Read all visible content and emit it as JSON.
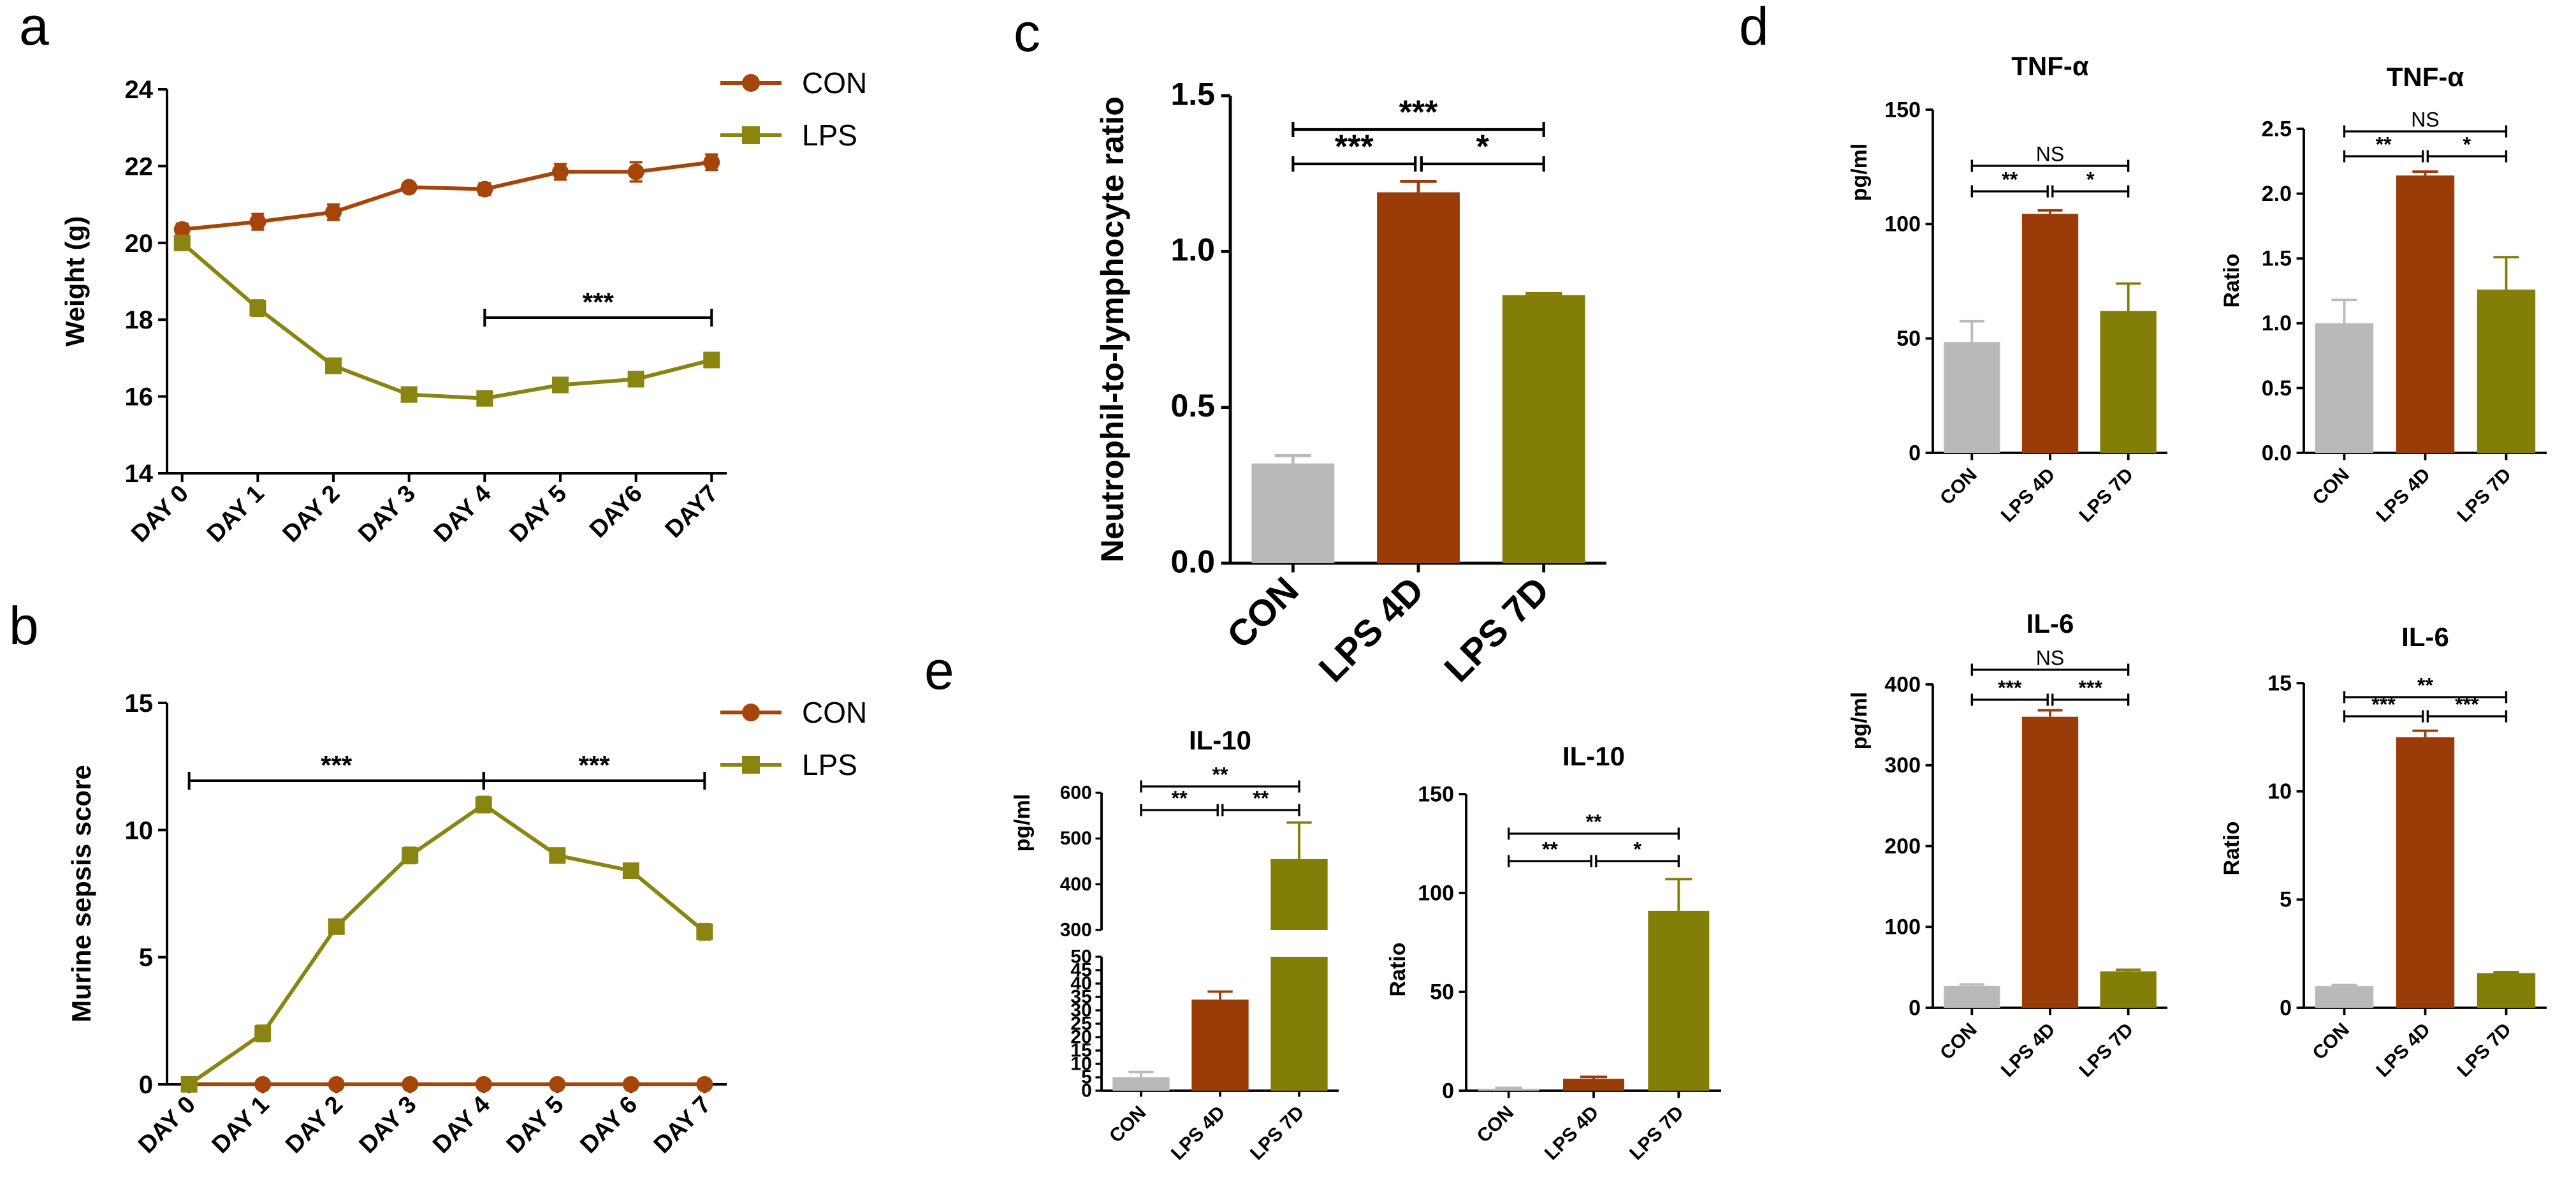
{
  "colors": {
    "CON": "#b9b9b9",
    "LPS4D": "#9a3c07",
    "LPS7D": "#827e07",
    "con_line": "#a64509",
    "lps_line": "#8a8410",
    "axis": "#000000"
  },
  "chart_data": [
    {
      "id": "a",
      "panel_label": "a",
      "type": "line",
      "title": "",
      "ylabel": "Weight (g)",
      "xlabel": "",
      "categories": [
        "DAY 0",
        "DAY 1",
        "DAY 2",
        "DAY 3",
        "DAY 4",
        "DAY 5",
        "DAY6",
        "DAY7"
      ],
      "ylim": [
        14,
        24
      ],
      "yticks": [
        14,
        16,
        18,
        20,
        22,
        24
      ],
      "series": [
        {
          "name": "CON",
          "marker": "circle",
          "values": [
            20.35,
            20.55,
            20.8,
            21.45,
            21.4,
            21.85,
            21.85,
            22.1
          ],
          "errors": [
            0.15,
            0.2,
            0.2,
            0.1,
            0.15,
            0.2,
            0.25,
            0.2
          ]
        },
        {
          "name": "LPS",
          "marker": "square",
          "values": [
            20.0,
            18.3,
            16.8,
            16.05,
            15.95,
            16.3,
            16.45,
            16.95
          ],
          "errors": [
            0.1,
            0.2,
            0.15,
            0.1,
            0.1,
            0.1,
            0.1,
            0.1
          ]
        }
      ],
      "legend": [
        "CON",
        "LPS"
      ],
      "annotations": [
        {
          "from": 4,
          "to": 7,
          "text": "***"
        }
      ]
    },
    {
      "id": "b",
      "panel_label": "b",
      "type": "line",
      "title": "",
      "ylabel": "Murine sepsis score",
      "xlabel": "",
      "categories": [
        "DAY 0",
        "DAY 1",
        "DAY 2",
        "DAY 3",
        "DAY 4",
        "DAY 5",
        "DAY 6",
        "DAY 7"
      ],
      "ylim": [
        0,
        15
      ],
      "yticks": [
        0,
        5,
        10,
        15
      ],
      "series": [
        {
          "name": "CON",
          "marker": "circle",
          "values": [
            0,
            0,
            0,
            0,
            0,
            0,
            0,
            0
          ],
          "errors": [
            0,
            0,
            0,
            0,
            0,
            0,
            0,
            0
          ]
        },
        {
          "name": "LPS",
          "marker": "square",
          "values": [
            0,
            2.0,
            6.2,
            9.0,
            11.0,
            9.0,
            8.4,
            6.0
          ],
          "errors": [
            0,
            0.3,
            0.2,
            0.3,
            0.3,
            0.2,
            0.2,
            0.3
          ]
        }
      ],
      "legend": [
        "CON",
        "LPS"
      ],
      "annotations": [
        {
          "from": 0,
          "to": 4,
          "text": "***"
        },
        {
          "from": 4,
          "to": 7,
          "text": "***"
        }
      ]
    },
    {
      "id": "c",
      "panel_label": "c",
      "type": "bar",
      "title": "",
      "ylabel": "Neutrophil-to-lymphocyte ratio",
      "categories": [
        "CON",
        "LPS 4D",
        "LPS 7D"
      ],
      "values": [
        0.32,
        1.19,
        0.86
      ],
      "errors": [
        0.025,
        0.035,
        0.005
      ],
      "ylim": [
        0,
        1.5
      ],
      "yticks": [
        "0.0",
        "0.5",
        "1.0",
        "1.5"
      ],
      "annotations": [
        {
          "from": 0,
          "to": 2,
          "text": "***",
          "level": 2
        },
        {
          "from": 0,
          "to": 1,
          "text": "***",
          "level": 1
        },
        {
          "from": 1,
          "to": 2,
          "text": "*",
          "level": 1
        }
      ]
    },
    {
      "id": "d1",
      "panel_label": "d",
      "type": "bar",
      "title": "TNF-α",
      "ylabel": "pg/ml",
      "categories": [
        "CON",
        "LPS 4D",
        "LPS 7D"
      ],
      "values": [
        48.5,
        104.5,
        62
      ],
      "errors": [
        9,
        1.5,
        12
      ],
      "ylim": [
        0,
        150
      ],
      "yticks": [
        "0",
        "50",
        "100",
        "150"
      ],
      "annotations": [
        {
          "from": 0,
          "to": 2,
          "text": "NS",
          "level": 2
        },
        {
          "from": 0,
          "to": 1,
          "text": "**",
          "level": 1
        },
        {
          "from": 1,
          "to": 2,
          "text": "*",
          "level": 1
        }
      ]
    },
    {
      "id": "d2",
      "panel_label": "",
      "type": "bar",
      "title": "TNF-α",
      "ylabel": "Ratio",
      "categories": [
        "CON",
        "LPS 4D",
        "LPS 7D"
      ],
      "values": [
        1.0,
        2.14,
        1.26
      ],
      "errors": [
        0.18,
        0.03,
        0.25
      ],
      "ylim": [
        0,
        2.5
      ],
      "yticks": [
        "0.0",
        "0.5",
        "1.0",
        "1.5",
        "2.0",
        "2.5"
      ],
      "annotations": [
        {
          "from": 0,
          "to": 2,
          "text": "NS",
          "level": 2
        },
        {
          "from": 0,
          "to": 1,
          "text": "**",
          "level": 1
        },
        {
          "from": 1,
          "to": 2,
          "text": "*",
          "level": 1
        }
      ]
    },
    {
      "id": "d3",
      "panel_label": "",
      "type": "bar",
      "title": "IL-6",
      "ylabel": "pg/ml",
      "categories": [
        "CON",
        "LPS 4D",
        "LPS 7D"
      ],
      "values": [
        27,
        360,
        45
      ],
      "errors": [
        2,
        8,
        2
      ],
      "ylim": [
        0,
        400
      ],
      "yticks": [
        "0",
        "100",
        "200",
        "300",
        "400"
      ],
      "annotations": [
        {
          "from": 0,
          "to": 2,
          "text": "NS",
          "level": 2
        },
        {
          "from": 0,
          "to": 1,
          "text": "***",
          "level": 1
        },
        {
          "from": 1,
          "to": 2,
          "text": "***",
          "level": 1
        }
      ]
    },
    {
      "id": "d4",
      "panel_label": "",
      "type": "bar",
      "title": "IL-6",
      "ylabel": "Ratio",
      "categories": [
        "CON",
        "LPS 4D",
        "LPS 7D"
      ],
      "values": [
        1.0,
        12.5,
        1.6
      ],
      "errors": [
        0.05,
        0.3,
        0.05
      ],
      "ylim": [
        0,
        15
      ],
      "yticks": [
        "0",
        "5",
        "10",
        "15"
      ],
      "annotations": [
        {
          "from": 0,
          "to": 2,
          "text": "**",
          "level": 2
        },
        {
          "from": 0,
          "to": 1,
          "text": "***",
          "level": 1
        },
        {
          "from": 1,
          "to": 2,
          "text": "***",
          "level": 1
        }
      ]
    },
    {
      "id": "e1",
      "panel_label": "e",
      "type": "bar",
      "title": "IL-10",
      "ylabel": "pg/ml",
      "broken_axis": true,
      "categories": [
        "CON",
        "LPS 4D",
        "LPS 7D"
      ],
      "values": [
        5,
        34,
        455
      ],
      "errors": [
        2,
        3,
        80
      ],
      "ylim_lower": [
        0,
        50
      ],
      "ylim_upper": [
        300,
        600
      ],
      "yticks_lower": [
        "0",
        "5",
        "10",
        "15",
        "20",
        "25",
        "30",
        "35",
        "40",
        "45",
        "50"
      ],
      "yticks_upper": [
        "300",
        "400",
        "500",
        "600"
      ],
      "annotations": [
        {
          "from": 0,
          "to": 2,
          "text": "**",
          "level": 2
        },
        {
          "from": 0,
          "to": 1,
          "text": "**",
          "level": 1
        },
        {
          "from": 1,
          "to": 2,
          "text": "**",
          "level": 1
        }
      ]
    },
    {
      "id": "e2",
      "panel_label": "",
      "type": "bar",
      "title": "IL-10",
      "ylabel": "Ratio",
      "categories": [
        "CON",
        "LPS 4D",
        "LPS 7D"
      ],
      "values": [
        1,
        6,
        91
      ],
      "errors": [
        0.5,
        1,
        16
      ],
      "ylim": [
        0,
        150
      ],
      "yticks": [
        "0",
        "50",
        "100",
        "150"
      ],
      "annotations": [
        {
          "from": 0,
          "to": 2,
          "text": "**",
          "level": 2
        },
        {
          "from": 0,
          "to": 1,
          "text": "**",
          "level": 1
        },
        {
          "from": 1,
          "to": 2,
          "text": "*",
          "level": 1
        }
      ]
    }
  ]
}
